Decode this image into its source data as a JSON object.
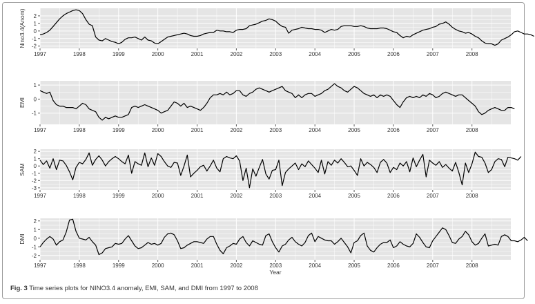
{
  "figure": {
    "caption_prefix": "Fig. 3",
    "caption_text": "Time series plots for NINO3.4 anomaly, EMI, SAM, and DMI from 1997 to 2008",
    "colors": {
      "panel_bg": "#e5e5e5",
      "grid": "#ffffff",
      "line": "#000000",
      "border": "#9a9a9a"
    }
  },
  "chart_data": [
    {
      "type": "line",
      "title": "",
      "xlabel": "",
      "ylabel": "Nino3.4(Anom)",
      "x_ticks": [
        "1997",
        "1998",
        "1999",
        "2000",
        "2001",
        "2002",
        "2003",
        "2004",
        "2005",
        "2006",
        "2007",
        "2008"
      ],
      "y_ticks": [
        -2,
        -1,
        0,
        1,
        2
      ],
      "xlim": [
        1997.0,
        2008.99
      ],
      "ylim": [
        -2.3,
        3.0
      ],
      "grid": true,
      "series": [
        {
          "x_start": 1997.0,
          "step": 0.0833333,
          "values": [
            -0.5,
            -0.4,
            -0.2,
            0.1,
            0.6,
            1.1,
            1.6,
            2.0,
            2.3,
            2.5,
            2.7,
            2.8,
            2.7,
            2.3,
            1.5,
            0.9,
            0.7,
            -0.8,
            -1.2,
            -1.3,
            -1.0,
            -1.2,
            -1.4,
            -1.5,
            -1.7,
            -1.5,
            -1.1,
            -0.9,
            -0.9,
            -0.8,
            -1.0,
            -1.2,
            -0.8,
            -1.2,
            -1.3,
            -1.6,
            -1.7,
            -1.4,
            -1.1,
            -0.8,
            -0.7,
            -0.6,
            -0.5,
            -0.4,
            -0.3,
            -0.4,
            -0.6,
            -0.7,
            -0.7,
            -0.6,
            -0.4,
            -0.3,
            -0.2,
            -0.2,
            0.1,
            0.0,
            0.0,
            -0.1,
            -0.1,
            -0.2,
            0.1,
            0.2,
            0.2,
            0.3,
            0.7,
            0.8,
            0.9,
            1.1,
            1.3,
            1.4,
            1.6,
            1.5,
            1.3,
            0.9,
            0.6,
            0.5,
            -0.3,
            0.1,
            0.2,
            0.3,
            0.5,
            0.4,
            0.3,
            0.3,
            0.2,
            0.2,
            0.1,
            -0.2,
            0.0,
            0.2,
            0.1,
            0.2,
            0.6,
            0.7,
            0.7,
            0.7,
            0.6,
            0.6,
            0.7,
            0.6,
            0.4,
            0.3,
            0.3,
            0.3,
            0.4,
            0.4,
            0.3,
            0.1,
            -0.1,
            -0.2,
            -0.6,
            -0.9,
            -0.7,
            -0.8,
            -0.5,
            -0.3,
            -0.1,
            0.1,
            0.2,
            0.3,
            0.5,
            0.6,
            0.9,
            1.0,
            1.2,
            0.9,
            0.5,
            0.2,
            0.0,
            -0.1,
            -0.3,
            -0.2,
            -0.4,
            -0.7,
            -0.9,
            -1.3,
            -1.6,
            -1.7,
            -1.7,
            -1.9,
            -1.7,
            -1.2,
            -1.0,
            -0.8,
            -0.5,
            -0.1,
            0.0,
            -0.2,
            -0.4,
            -0.4,
            -0.5,
            -0.7
          ]
        }
      ]
    },
    {
      "type": "line",
      "title": "",
      "xlabel": "",
      "ylabel": "EMI",
      "x_ticks": [
        "1997",
        "1998",
        "1999",
        "2000",
        "2001",
        "2002",
        "2003",
        "2004",
        "2005",
        "2006",
        "2007",
        "2008"
      ],
      "y_ticks": [
        -1,
        0,
        1
      ],
      "xlim": [
        1997.0,
        2008.99
      ],
      "ylim": [
        -1.8,
        1.3
      ],
      "grid": true,
      "series": [
        {
          "x_start": 1997.0,
          "step": 0.0833333,
          "values": [
            0.6,
            0.5,
            0.4,
            0.5,
            -0.1,
            -0.4,
            -0.5,
            -0.5,
            -0.6,
            -0.6,
            -0.6,
            -0.7,
            -0.5,
            -0.3,
            -0.4,
            -0.7,
            -0.8,
            -0.9,
            -1.3,
            -1.5,
            -1.3,
            -1.4,
            -1.3,
            -1.2,
            -1.3,
            -1.3,
            -1.2,
            -1.1,
            -0.6,
            -0.5,
            -0.6,
            -0.5,
            -0.4,
            -0.5,
            -0.6,
            -0.7,
            -0.8,
            -1.0,
            -0.9,
            -0.8,
            -0.5,
            -0.2,
            -0.3,
            -0.5,
            -0.3,
            -0.6,
            -0.5,
            -0.6,
            -0.7,
            -0.8,
            -0.6,
            -0.3,
            0.1,
            0.3,
            0.3,
            0.4,
            0.3,
            0.5,
            0.3,
            0.4,
            0.6,
            0.6,
            0.3,
            0.2,
            0.4,
            0.5,
            0.7,
            0.8,
            0.7,
            0.6,
            0.5,
            0.6,
            0.7,
            0.8,
            0.9,
            0.6,
            0.5,
            0.4,
            0.1,
            0.3,
            0.1,
            0.3,
            0.4,
            0.4,
            0.2,
            0.3,
            0.4,
            0.6,
            0.7,
            0.9,
            1.1,
            0.9,
            0.8,
            0.6,
            0.5,
            0.7,
            0.9,
            0.8,
            0.6,
            0.4,
            0.3,
            0.2,
            0.3,
            0.1,
            0.3,
            0.2,
            0.3,
            0.2,
            -0.1,
            -0.4,
            -0.6,
            -0.2,
            0.1,
            0.2,
            0.1,
            0.2,
            0.1,
            0.3,
            0.2,
            0.4,
            0.3,
            0.1,
            0.2,
            0.4,
            0.5,
            0.4,
            0.3,
            0.2,
            0.3,
            0.3,
            0.1,
            -0.1,
            -0.3,
            -0.5,
            -0.9,
            -1.1,
            -1.0,
            -0.8,
            -0.7,
            -0.6,
            -0.7,
            -0.8,
            -0.8,
            -0.6,
            -0.6,
            -0.7
          ]
        }
      ]
    },
    {
      "type": "line",
      "title": "",
      "xlabel": "",
      "ylabel": "SAM",
      "x_ticks": [
        "1997",
        "1998",
        "1999",
        "2000",
        "2001",
        "2002",
        "2003",
        "2004",
        "2005",
        "2006",
        "2007",
        "2008"
      ],
      "y_ticks": [
        -3,
        -2,
        -1,
        0,
        1,
        2
      ],
      "xlim": [
        1997.0,
        2008.99
      ],
      "ylim": [
        -3.3,
        2.3
      ],
      "grid": true,
      "series": [
        {
          "x_start": 1997.0,
          "step": 0.0833333,
          "values": [
            0.8,
            0.2,
            0.7,
            -0.3,
            1.0,
            -0.5,
            0.8,
            0.7,
            0.1,
            -0.8,
            -1.9,
            -0.2,
            0.5,
            0.3,
            0.9,
            1.8,
            0.1,
            0.9,
            1.4,
            0.8,
            0.0,
            0.6,
            1.0,
            1.3,
            1.0,
            0.6,
            0.3,
            1.5,
            -1.0,
            0.6,
            0.3,
            0.1,
            1.8,
            -0.1,
            1.1,
            0.1,
            1.7,
            1.3,
            0.6,
            0.0,
            -0.2,
            0.5,
            0.4,
            -1.3,
            0.0,
            1.5,
            -1.5,
            -1.0,
            -0.6,
            -0.1,
            0.1,
            -0.7,
            0.0,
            0.8,
            -0.3,
            -0.8,
            1.0,
            1.3,
            1.1,
            1.0,
            1.4,
            0.7,
            -2.0,
            -0.3,
            -3.0,
            -0.4,
            -1.4,
            -0.2,
            0.9,
            -1.1,
            -1.8,
            -0.6,
            -0.5,
            0.8,
            -2.7,
            -0.9,
            -0.4,
            0.0,
            0.4,
            -0.5,
            0.3,
            -0.1,
            0.7,
            0.2,
            -0.3,
            -0.9,
            0.8,
            -1.1,
            0.6,
            0.1,
            0.8,
            0.4,
            1.0,
            0.5,
            -0.1,
            0.0,
            -0.6,
            -1.3,
            1.0,
            0.0,
            0.5,
            0.2,
            -0.2,
            -0.9,
            0.5,
            0.9,
            0.4,
            -0.9,
            -0.2,
            -0.5,
            0.4,
            0.0,
            0.6,
            -0.8,
            1.1,
            -0.1,
            0.8,
            1.6,
            -1.5,
            0.8,
            0.4,
            0.1,
            0.6,
            -0.2,
            0.2,
            -0.3,
            -0.7,
            0.5,
            -0.9,
            -2.6,
            0.4,
            -0.9,
            0.3,
            1.9,
            1.3,
            1.2,
            0.4,
            -0.9,
            -0.5,
            0.6,
            1.0,
            0.9,
            -0.1,
            1.2,
            1.1,
            1.0,
            0.8,
            1.3
          ]
        }
      ]
    },
    {
      "type": "line",
      "title": "",
      "xlabel": "Year",
      "ylabel": "DMI",
      "x_ticks": [
        "1997",
        "1998",
        "1999",
        "2000",
        "2001",
        "2002",
        "2003",
        "2004",
        "2005",
        "2006",
        "2007",
        "2008"
      ],
      "y_ticks": [
        -2,
        -1,
        0,
        1,
        2
      ],
      "xlim": [
        1997.0,
        2008.99
      ],
      "ylim": [
        -2.5,
        2.3
      ],
      "grid": true,
      "series": [
        {
          "x_start": 1997.0,
          "step": 0.0833333,
          "values": [
            -1.0,
            -0.5,
            -0.1,
            0.2,
            -0.1,
            -0.8,
            -0.4,
            -0.2,
            0.7,
            2.1,
            2.2,
            0.8,
            0.0,
            -0.1,
            -0.2,
            0.1,
            -0.4,
            -0.8,
            -1.9,
            -1.7,
            -1.2,
            -1.1,
            -1.0,
            -0.6,
            -0.7,
            -0.6,
            -0.1,
            0.3,
            -0.3,
            -0.9,
            -1.2,
            -1.1,
            -0.8,
            -0.5,
            -0.7,
            -0.6,
            -0.8,
            -0.6,
            0.1,
            0.5,
            0.6,
            0.4,
            -0.3,
            -1.2,
            -1.1,
            -0.8,
            -0.6,
            -0.4,
            -0.4,
            -0.5,
            -0.6,
            -0.1,
            0.2,
            0.2,
            -0.7,
            -1.4,
            -1.8,
            -1.1,
            -0.9,
            -0.6,
            -0.7,
            -0.1,
            0.2,
            -0.5,
            -0.9,
            -0.3,
            -0.5,
            -0.7,
            -0.8,
            0.3,
            0.5,
            -0.4,
            -1.1,
            -1.6,
            -0.9,
            -0.7,
            -0.2,
            0.1,
            -0.4,
            -0.7,
            -0.9,
            -0.5,
            0.3,
            0.6,
            -0.4,
            0.2,
            0.0,
            -0.2,
            -0.3,
            -0.3,
            -0.7,
            -0.4,
            0.0,
            -0.5,
            -1.0,
            -1.7,
            -0.5,
            -0.3,
            0.3,
            0.6,
            -0.9,
            -1.4,
            -1.6,
            -1.1,
            -0.7,
            -0.5,
            -0.5,
            -0.2,
            -1.1,
            -0.9,
            -0.4,
            -0.7,
            -0.9,
            -1.0,
            -0.6,
            0.5,
            0.1,
            -0.5,
            -1.0,
            -1.1,
            -0.3,
            0.2,
            0.7,
            1.2,
            1.0,
            0.3,
            -0.5,
            -0.6,
            -0.1,
            0.2,
            0.8,
            0.4,
            -0.4,
            -0.8,
            -0.6,
            0.0,
            0.5,
            -0.9,
            -0.8,
            -0.7,
            -0.8,
            0.2,
            0.4,
            0.2,
            -0.3,
            -0.3,
            -0.4,
            -0.2,
            0.1,
            -0.3
          ]
        }
      ]
    }
  ]
}
